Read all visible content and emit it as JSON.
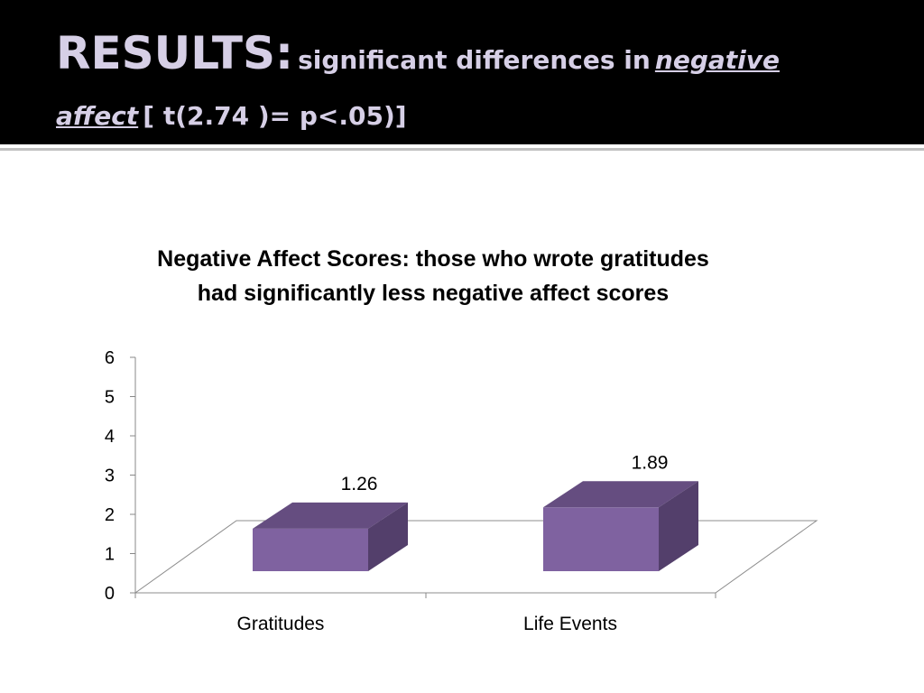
{
  "slide": {
    "title_main": "RESULTS:",
    "title_sub_before": "significant differences in",
    "title_sub_emph1": "negative",
    "title_sub_emph2": "affect",
    "title_sub_after": "[ t(2.74 )=  p<.05)]",
    "colors": {
      "header_bg": "#000000",
      "title": "#d6cfe6",
      "bar": "#7f62a0",
      "bar_top": "#654d80",
      "bar_side": "#533f6b"
    }
  },
  "chart_data": {
    "type": "bar",
    "title": "Negative Affect Scores: those who wrote gratitudes had significantly less negative affect scores",
    "title_line1": "Negative Affect Scores: those who wrote gratitudes",
    "title_line2": "had significantly less negative affect scores",
    "categories": [
      "Gratitudes",
      "Life Events"
    ],
    "values": [
      1.26,
      1.89
    ],
    "data_labels": [
      "1.26",
      "1.89"
    ],
    "ylim": [
      0,
      6
    ],
    "yticks": [
      "0",
      "1",
      "2",
      "3",
      "4",
      "5",
      "6"
    ],
    "style": "3d",
    "legend": "none",
    "grid": false
  }
}
